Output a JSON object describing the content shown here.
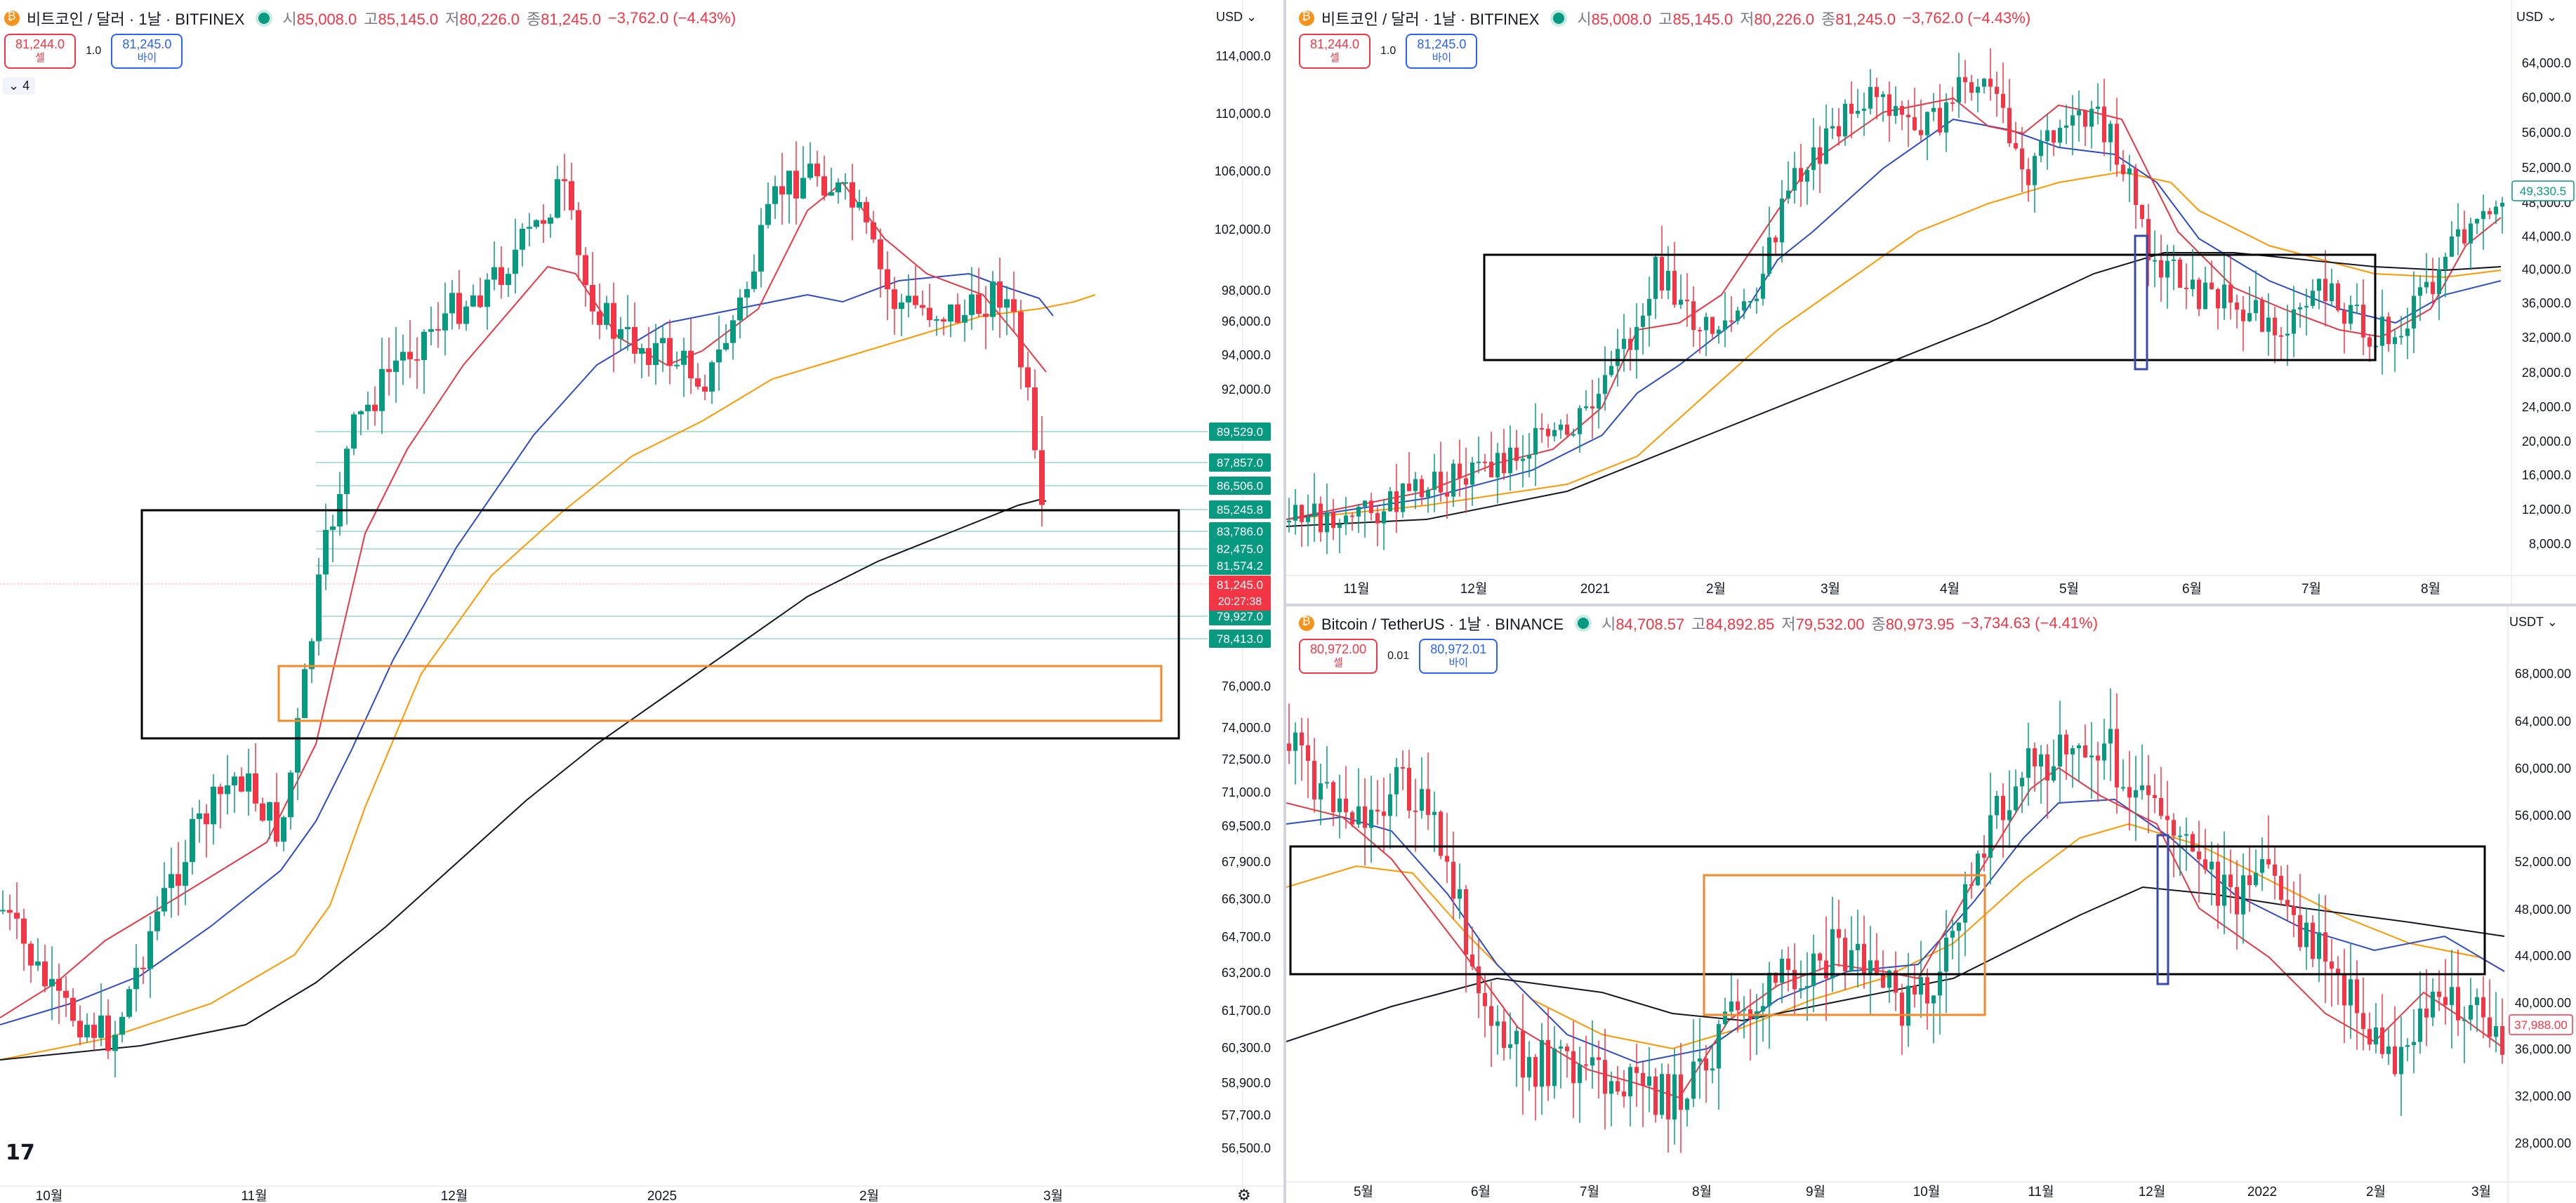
{
  "panels": {
    "left": {
      "title": "비트코인 / 달러 · 1날 · BITFINEX",
      "ohlc": {
        "o_label": "시",
        "o": "85,008.0",
        "h_label": "고",
        "h": "85,145.0",
        "l_label": "저",
        "l": "80,226.0",
        "c_label": "종",
        "c": "81,245.0",
        "change": "−3,762.0 (−4.43%)"
      },
      "sell": {
        "price": "81,244.0",
        "label": "셀"
      },
      "spread": "1.0",
      "buy": {
        "price": "81,245.0",
        "label": "바이"
      },
      "currency": "USD",
      "indicators_toggle": "4",
      "y_ticks": [
        "114,000.0",
        "110,000.0",
        "106,000.0",
        "102,000.0",
        "98,000.0",
        "96,000.0",
        "94,000.0",
        "92,000.0",
        "76,000.0",
        "74,000.0",
        "72,500.0",
        "71,000.0",
        "69,500.0",
        "67,900.0",
        "66,300.0",
        "64,700.0",
        "63,200.0",
        "61,700.0",
        "60,300.0",
        "58,900.0",
        "57,700.0",
        "56,500.0"
      ],
      "level_tags": [
        "89,529.0",
        "87,857.0",
        "86,506.0",
        "85,245.8",
        "83,786.0",
        "82,475.0",
        "81,574.2",
        "79,927.0",
        "78,413.0"
      ],
      "last_price": "81,245.0",
      "countdown": "20:27:38",
      "x_labels": [
        "10월",
        "11월",
        "12월",
        "2025",
        "2월",
        "3월"
      ]
    },
    "top_right": {
      "title": "비트코인 / 달러 · 1날 · BITFINEX",
      "ohlc": {
        "o_label": "시",
        "o": "85,008.0",
        "h_label": "고",
        "h": "85,145.0",
        "l_label": "저",
        "l": "80,226.0",
        "c_label": "종",
        "c": "81,245.0",
        "change": "−3,762.0 (−4.43%)"
      },
      "sell": {
        "price": "81,244.0",
        "label": "셀"
      },
      "spread": "1.0",
      "buy": {
        "price": "81,245.0",
        "label": "바이"
      },
      "currency": "USD",
      "y_ticks": [
        "64,000.0",
        "60,000.0",
        "56,000.0",
        "52,000.0",
        "48,000.0",
        "44,000.0",
        "40,000.0",
        "36,000.0",
        "32,000.0",
        "28,000.0",
        "24,000.0",
        "20,000.0",
        "16,000.0",
        "12,000.0",
        "8,000.0"
      ],
      "last_price": "49,330.5",
      "x_labels": [
        "11월",
        "12월",
        "2021",
        "2월",
        "3월",
        "4월",
        "5월",
        "6월",
        "7월",
        "8월"
      ]
    },
    "bottom_right": {
      "title": "Bitcoin / TetherUS · 1날 · BINANCE",
      "ohlc": {
        "o_label": "시",
        "o": "84,708.57",
        "h_label": "고",
        "h": "84,892.85",
        "l_label": "저",
        "l": "79,532.00",
        "c_label": "종",
        "c": "80,973.95",
        "change": "−3,734.63 (−4.41%)"
      },
      "sell": {
        "price": "80,972.00",
        "label": "셀"
      },
      "spread": "0.01",
      "buy": {
        "price": "80,972.01",
        "label": "바이"
      },
      "currency": "USDT",
      "y_ticks": [
        "68,000.00",
        "64,000.00",
        "60,000.00",
        "56,000.00",
        "52,000.00",
        "48,000.00",
        "44,000.00",
        "40,000.00",
        "36,000.00",
        "32,000.00",
        "28,000.00"
      ],
      "last_price": "37,988.00",
      "x_labels": [
        "5월",
        "6월",
        "7월",
        "8월",
        "9월",
        "10월",
        "11월",
        "12월",
        "2022",
        "2월",
        "3월"
      ]
    }
  },
  "colors": {
    "up": "#089981",
    "down": "#f23645",
    "ema_fast": "#e53946",
    "ema_mid": "#2e4bc9",
    "ema_slow": "#ff9800",
    "ema_long": "#131722",
    "box_black": "#000000",
    "box_orange": "#f28a2b",
    "box_blue": "#3949ab"
  },
  "icons": [
    "bitcoin-icon",
    "market-open-dot-icon",
    "chevron-down-icon",
    "settings-icon",
    "tradingview-logo-icon"
  ]
}
